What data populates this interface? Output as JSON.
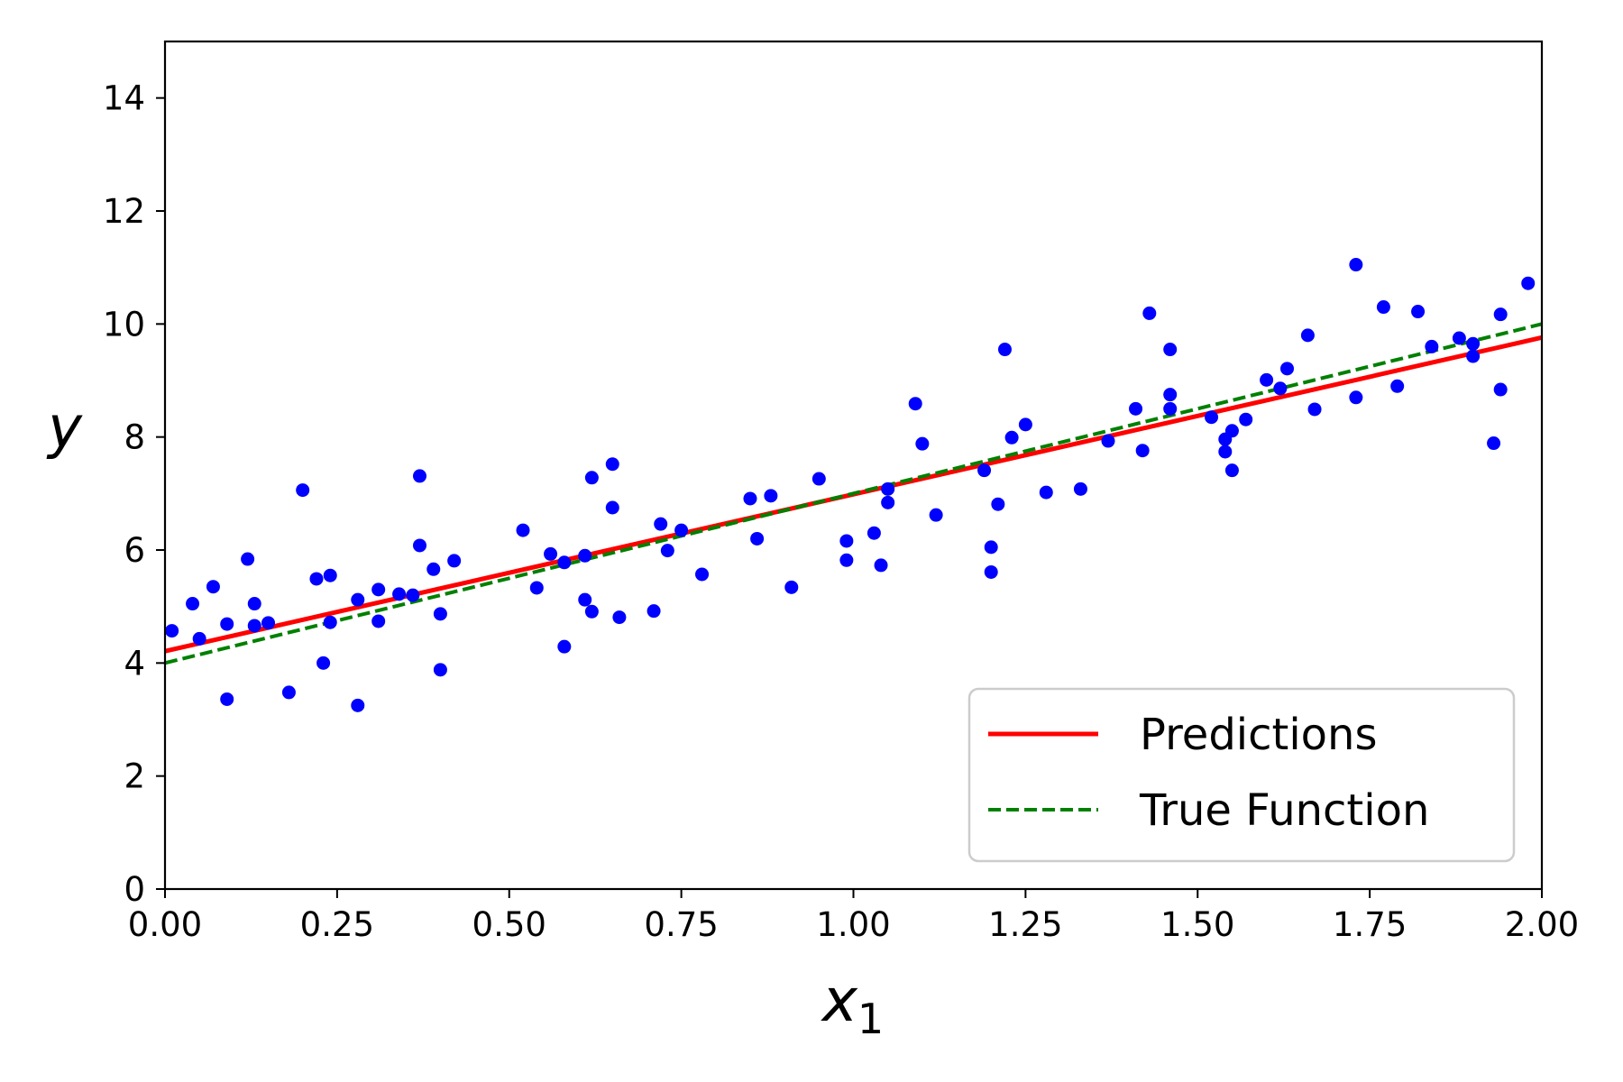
{
  "chart_data": {
    "type": "scatter",
    "xlabel_main": "x",
    "xlabel_sub": "1",
    "ylabel": "y",
    "xlim": [
      0,
      2
    ],
    "ylim": [
      0,
      15
    ],
    "x_ticks": [
      "0.00",
      "0.25",
      "0.50",
      "0.75",
      "1.00",
      "1.25",
      "1.50",
      "1.75",
      "2.00"
    ],
    "y_ticks": [
      "0",
      "2",
      "4",
      "6",
      "8",
      "10",
      "12",
      "14"
    ],
    "grid": false,
    "legend_position": "lower-right",
    "colors": {
      "points": "#0000ff",
      "predictions": "#ff0000",
      "true_function": "#008000"
    },
    "points": [
      [
        0.01,
        4.57
      ],
      [
        0.04,
        5.05
      ],
      [
        0.05,
        4.43
      ],
      [
        0.07,
        5.35
      ],
      [
        0.09,
        3.36
      ],
      [
        0.09,
        4.69
      ],
      [
        0.12,
        5.84
      ],
      [
        0.13,
        5.05
      ],
      [
        0.13,
        4.66
      ],
      [
        0.15,
        4.71
      ],
      [
        0.18,
        3.48
      ],
      [
        0.2,
        7.06
      ],
      [
        0.22,
        5.49
      ],
      [
        0.23,
        4.0
      ],
      [
        0.24,
        5.55
      ],
      [
        0.24,
        4.72
      ],
      [
        0.28,
        3.25
      ],
      [
        0.28,
        5.12
      ],
      [
        0.31,
        5.3
      ],
      [
        0.31,
        4.74
      ],
      [
        0.34,
        5.22
      ],
      [
        0.36,
        5.2
      ],
      [
        0.37,
        6.08
      ],
      [
        0.37,
        7.31
      ],
      [
        0.39,
        5.66
      ],
      [
        0.4,
        3.88
      ],
      [
        0.4,
        4.87
      ],
      [
        0.42,
        5.81
      ],
      [
        0.52,
        6.35
      ],
      [
        0.54,
        5.33
      ],
      [
        0.56,
        5.93
      ],
      [
        0.58,
        4.29
      ],
      [
        0.58,
        5.78
      ],
      [
        0.61,
        5.12
      ],
      [
        0.61,
        5.9
      ],
      [
        0.62,
        7.28
      ],
      [
        0.62,
        4.91
      ],
      [
        0.65,
        7.52
      ],
      [
        0.65,
        6.75
      ],
      [
        0.66,
        4.81
      ],
      [
        0.71,
        4.92
      ],
      [
        0.72,
        6.46
      ],
      [
        0.73,
        5.99
      ],
      [
        0.75,
        6.35
      ],
      [
        0.78,
        5.57
      ],
      [
        0.85,
        6.91
      ],
      [
        0.86,
        6.2
      ],
      [
        0.88,
        6.96
      ],
      [
        0.91,
        5.34
      ],
      [
        0.95,
        7.26
      ],
      [
        0.99,
        6.16
      ],
      [
        0.99,
        5.82
      ],
      [
        1.03,
        6.3
      ],
      [
        1.04,
        5.73
      ],
      [
        1.05,
        7.08
      ],
      [
        1.05,
        6.84
      ],
      [
        1.09,
        8.59
      ],
      [
        1.1,
        7.88
      ],
      [
        1.12,
        6.62
      ],
      [
        1.19,
        7.41
      ],
      [
        1.2,
        6.05
      ],
      [
        1.2,
        5.61
      ],
      [
        1.21,
        6.81
      ],
      [
        1.22,
        9.55
      ],
      [
        1.23,
        7.99
      ],
      [
        1.25,
        8.22
      ],
      [
        1.28,
        7.02
      ],
      [
        1.33,
        7.08
      ],
      [
        1.37,
        7.93
      ],
      [
        1.41,
        8.5
      ],
      [
        1.42,
        7.76
      ],
      [
        1.43,
        10.19
      ],
      [
        1.46,
        9.55
      ],
      [
        1.46,
        8.75
      ],
      [
        1.46,
        8.5
      ],
      [
        1.52,
        8.35
      ],
      [
        1.54,
        7.96
      ],
      [
        1.54,
        7.74
      ],
      [
        1.55,
        8.11
      ],
      [
        1.55,
        7.41
      ],
      [
        1.57,
        8.31
      ],
      [
        1.6,
        9.01
      ],
      [
        1.62,
        8.86
      ],
      [
        1.63,
        9.21
      ],
      [
        1.66,
        9.8
      ],
      [
        1.67,
        8.49
      ],
      [
        1.73,
        11.05
      ],
      [
        1.73,
        8.7
      ],
      [
        1.77,
        10.3
      ],
      [
        1.79,
        8.9
      ],
      [
        1.82,
        10.22
      ],
      [
        1.84,
        9.6
      ],
      [
        1.88,
        9.75
      ],
      [
        1.9,
        9.65
      ],
      [
        1.9,
        9.43
      ],
      [
        1.93,
        7.89
      ],
      [
        1.94,
        8.84
      ],
      [
        1.94,
        10.17
      ],
      [
        1.98,
        10.72
      ]
    ],
    "series": [
      {
        "name": "Predictions",
        "style": "solid",
        "x": [
          0,
          2
        ],
        "y": [
          4.21,
          9.76
        ]
      },
      {
        "name": "True Function",
        "style": "dashed",
        "x": [
          0,
          2
        ],
        "y": [
          4.0,
          10.0
        ]
      }
    ]
  }
}
